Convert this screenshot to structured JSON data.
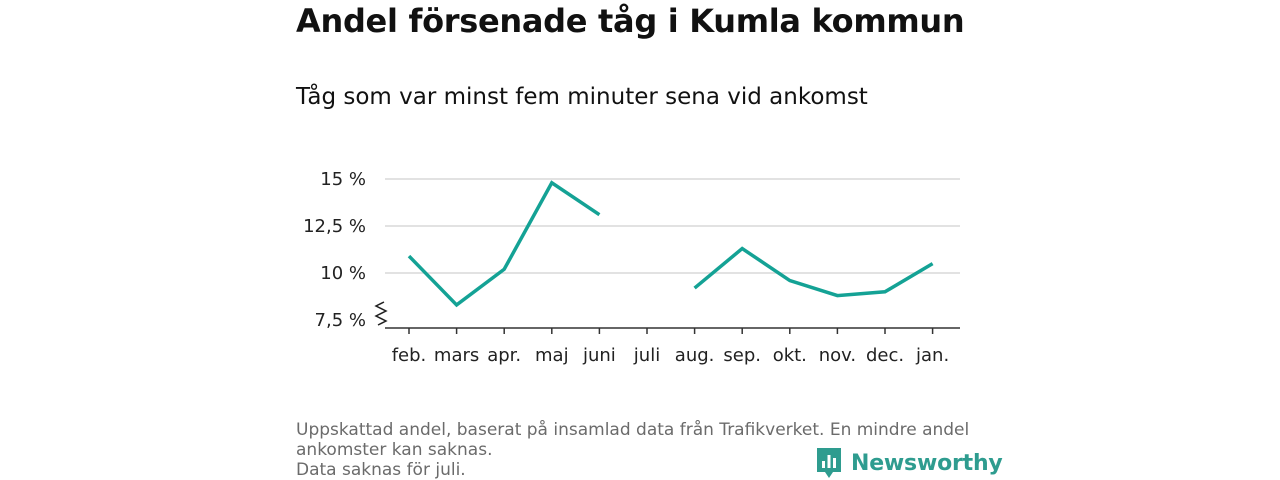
{
  "title": "Andel försenade tåg i Kumla kommun",
  "subtitle": "Tåg som var minst fem minuter sena vid ankomst",
  "footer": {
    "line1": "Uppskattad andel, baserat på insamlad data från Trafikverket. En mindre andel",
    "line2": "ankomster kan saknas.",
    "line3": "Data saknas för juli."
  },
  "brand": {
    "name": "Newsworthy",
    "color": "#2e9c8f",
    "icon": "bar-chart-speech-icon"
  },
  "colors": {
    "line": "#14a295",
    "grid": "#d9d9d9",
    "axis": "#333333"
  },
  "chart_data": {
    "type": "line",
    "categories": [
      "feb.",
      "mars",
      "apr.",
      "maj",
      "juni",
      "juli",
      "aug.",
      "sep.",
      "okt.",
      "nov.",
      "dec.",
      "jan."
    ],
    "series": [
      {
        "values": [
          10.9,
          8.3,
          10.2,
          14.8,
          13.1,
          null,
          9.2,
          11.3,
          9.6,
          8.8,
          9.0,
          10.5
        ]
      }
    ],
    "y_ticks": [
      7.5,
      10,
      12.5,
      15
    ],
    "y_tick_labels": [
      "7,5 %",
      "10 %",
      "12,5 %",
      "15 %"
    ],
    "ylim": [
      7.5,
      15
    ],
    "y_axis_break": true,
    "grid": true
  }
}
